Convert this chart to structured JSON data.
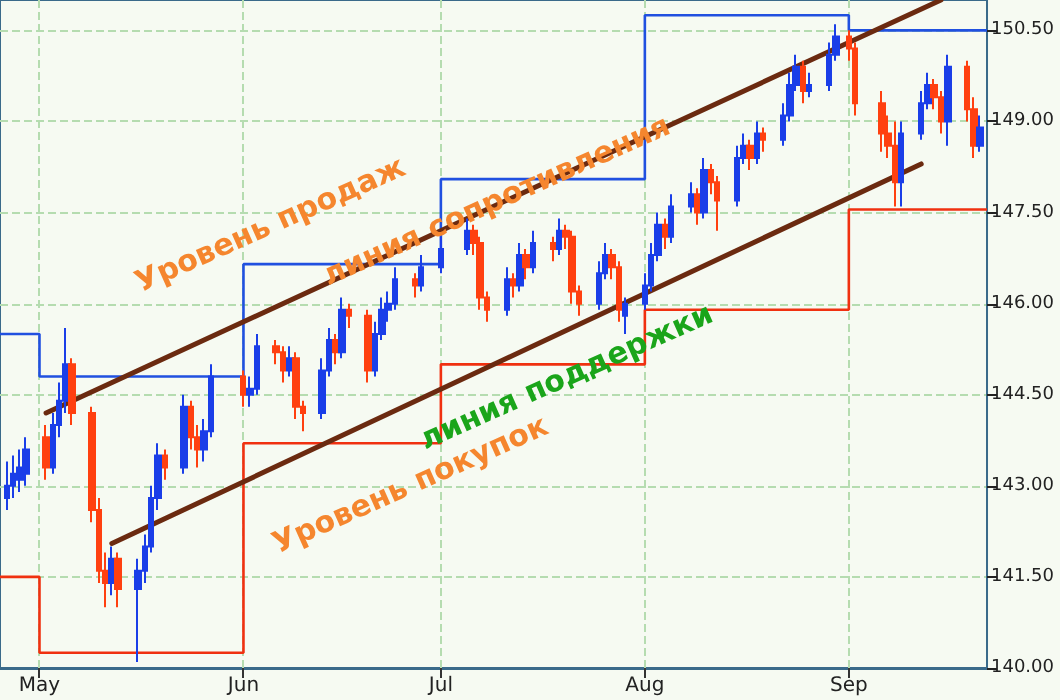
{
  "chart_data": {
    "type": "candlestick",
    "annotations": [
      "Уровень продаж",
      "линия сопротивления",
      "линия поддержки",
      "Уровень покупок"
    ],
    "xlim": [
      "--04-25",
      "--09-22"
    ],
    "xticks": [
      {
        "value": "--05-01",
        "label": "May"
      },
      {
        "value": "--06-01",
        "label": "Jun"
      },
      {
        "value": "--07-01",
        "label": "Jul"
      },
      {
        "value": "--08-01",
        "label": "Aug"
      },
      {
        "value": "--09-01",
        "label": "Sep"
      }
    ],
    "ylim": [
      140,
      151
    ],
    "yticks": [
      {
        "value": 140,
        "label": "140.00"
      },
      {
        "value": 141.5,
        "label": "141.50"
      },
      {
        "value": 143,
        "label": "143.00"
      },
      {
        "value": 144.5,
        "label": "144.50"
      },
      {
        "value": 146,
        "label": "146.00"
      },
      {
        "value": 147.5,
        "label": "147.50"
      },
      {
        "value": 149,
        "label": "149.00"
      },
      {
        "value": 150.5,
        "label": "150.50"
      }
    ],
    "grid": true,
    "marker": "none",
    "series": [
      {
        "type": "candlestick",
        "x": [
          "--04-26",
          "--04-27",
          "--04-28",
          "--04-29",
          "--05-02",
          "--05-03",
          "--05-04",
          "--05-05",
          "--05-06",
          "--05-09",
          "--05-10",
          "--05-11",
          "--05-12",
          "--05-13",
          "--05-16",
          "--05-17",
          "--05-18",
          "--05-19",
          "--05-20",
          "--05-23",
          "--05-24",
          "--05-25",
          "--05-26",
          "--05-27",
          "--06-01",
          "--06-02",
          "--06-03",
          "--06-06",
          "--06-07",
          "--06-08",
          "--06-09",
          "--06-10",
          "--06-13",
          "--06-14",
          "--06-15",
          "--06-16",
          "--06-17",
          "--06-20",
          "--06-21",
          "--06-22",
          "--06-23",
          "--06-24",
          "--06-27",
          "--06-28",
          "--07-01",
          "--07-05",
          "--07-06",
          "--07-07",
          "--07-08",
          "--07-11",
          "--07-12",
          "--07-13",
          "--07-14",
          "--07-15",
          "--07-18",
          "--07-19",
          "--07-20",
          "--07-21",
          "--07-22",
          "--07-25",
          "--07-26",
          "--07-27",
          "--07-28",
          "--07-29",
          "--08-01",
          "--08-02",
          "--08-03",
          "--08-04",
          "--08-05",
          "--08-08",
          "--08-09",
          "--08-10",
          "--08-11",
          "--08-12",
          "--08-15",
          "--08-16",
          "--08-17",
          "--08-18",
          "--08-19",
          "--08-22",
          "--08-23",
          "--08-24",
          "--08-25",
          "--08-26",
          "--08-29",
          "--08-30",
          "--09-01",
          "--09-02",
          "--09-06",
          "--09-07",
          "--09-08",
          "--09-09",
          "--09-12",
          "--09-13",
          "--09-14",
          "--09-15",
          "--09-16",
          "--09-19",
          "--09-20",
          "--09-21"
        ],
        "ohlc": [
          [
            142.8,
            143.4,
            142.6,
            143.0
          ],
          [
            143.0,
            143.5,
            142.8,
            143.2
          ],
          [
            143.1,
            143.6,
            142.9,
            143.3
          ],
          [
            143.2,
            143.8,
            143.0,
            143.6
          ],
          [
            143.8,
            144.0,
            143.1,
            143.3
          ],
          [
            143.3,
            144.2,
            143.2,
            144.0
          ],
          [
            144.0,
            144.7,
            143.8,
            144.4
          ],
          [
            144.4,
            145.6,
            144.2,
            145.0
          ],
          [
            145.0,
            145.1,
            144.0,
            144.2
          ],
          [
            144.2,
            144.3,
            142.4,
            142.6
          ],
          [
            142.6,
            142.8,
            141.4,
            141.6
          ],
          [
            141.6,
            141.9,
            141.0,
            141.4
          ],
          [
            141.4,
            142.0,
            141.2,
            141.8
          ],
          [
            141.8,
            141.9,
            141.0,
            141.3
          ],
          [
            141.3,
            141.8,
            140.1,
            141.6
          ],
          [
            141.6,
            142.2,
            141.4,
            142.0
          ],
          [
            142.0,
            143.0,
            141.9,
            142.8
          ],
          [
            142.8,
            143.7,
            142.6,
            143.5
          ],
          [
            143.5,
            143.6,
            143.1,
            143.3
          ],
          [
            143.3,
            144.5,
            143.2,
            144.3
          ],
          [
            144.3,
            144.4,
            143.6,
            143.8
          ],
          [
            143.8,
            144.0,
            143.3,
            143.6
          ],
          [
            143.6,
            144.1,
            143.4,
            143.9
          ],
          [
            143.9,
            145.0,
            143.8,
            144.8
          ],
          [
            144.8,
            144.9,
            144.3,
            144.5
          ],
          [
            144.5,
            144.8,
            144.3,
            144.6
          ],
          [
            144.6,
            145.5,
            144.5,
            145.3
          ],
          [
            145.3,
            145.4,
            145.0,
            145.2
          ],
          [
            145.2,
            145.3,
            144.7,
            144.9
          ],
          [
            144.9,
            145.3,
            144.8,
            145.1
          ],
          [
            145.1,
            145.2,
            144.1,
            144.3
          ],
          [
            144.3,
            144.4,
            143.9,
            144.2
          ],
          [
            144.2,
            145.1,
            144.1,
            144.9
          ],
          [
            144.9,
            145.6,
            144.8,
            145.4
          ],
          [
            145.4,
            145.5,
            145.0,
            145.2
          ],
          [
            145.2,
            146.1,
            145.1,
            145.9
          ],
          [
            145.9,
            146.0,
            145.6,
            145.8
          ],
          [
            145.8,
            145.9,
            144.7,
            144.9
          ],
          [
            144.9,
            145.7,
            144.8,
            145.5
          ],
          [
            145.5,
            146.1,
            145.4,
            145.9
          ],
          [
            145.9,
            146.2,
            145.7,
            146.0
          ],
          [
            146.0,
            146.6,
            145.9,
            146.4
          ],
          [
            146.4,
            146.5,
            146.1,
            146.3
          ],
          [
            146.3,
            146.8,
            146.2,
            146.6
          ],
          [
            146.6,
            147.1,
            146.5,
            146.9
          ],
          [
            146.9,
            147.4,
            146.8,
            147.2
          ],
          [
            147.2,
            147.3,
            146.8,
            147.0
          ],
          [
            147.0,
            147.1,
            145.9,
            146.1
          ],
          [
            146.1,
            146.2,
            145.7,
            145.9
          ],
          [
            145.9,
            146.6,
            145.8,
            146.4
          ],
          [
            146.4,
            146.5,
            146.1,
            146.3
          ],
          [
            146.3,
            147.0,
            146.2,
            146.8
          ],
          [
            146.8,
            146.9,
            146.4,
            146.6
          ],
          [
            146.6,
            147.2,
            146.5,
            147.0
          ],
          [
            147.0,
            147.1,
            146.7,
            146.9
          ],
          [
            146.9,
            147.4,
            146.8,
            147.2
          ],
          [
            147.2,
            147.3,
            146.9,
            147.1
          ],
          [
            147.1,
            147.2,
            146.0,
            146.2
          ],
          [
            146.2,
            146.3,
            145.8,
            146.0
          ],
          [
            146.0,
            146.7,
            145.9,
            146.5
          ],
          [
            146.5,
            147.0,
            146.4,
            146.8
          ],
          [
            146.8,
            146.9,
            146.4,
            146.6
          ],
          [
            146.6,
            146.7,
            145.7,
            145.9
          ],
          [
            145.8,
            146.1,
            145.5,
            146.0
          ],
          [
            146.0,
            146.5,
            145.9,
            146.3
          ],
          [
            146.3,
            147.0,
            146.2,
            146.8
          ],
          [
            146.8,
            147.5,
            146.7,
            147.3
          ],
          [
            147.3,
            147.4,
            146.9,
            147.1
          ],
          [
            147.1,
            147.8,
            147.0,
            147.6
          ],
          [
            147.6,
            148.0,
            147.5,
            147.8
          ],
          [
            147.8,
            147.9,
            147.3,
            147.5
          ],
          [
            147.5,
            148.4,
            147.4,
            148.2
          ],
          [
            148.2,
            148.3,
            147.8,
            148.0
          ],
          [
            148.0,
            148.1,
            147.2,
            147.7
          ],
          [
            147.7,
            148.6,
            147.6,
            148.4
          ],
          [
            148.4,
            148.8,
            148.3,
            148.6
          ],
          [
            148.6,
            148.7,
            148.2,
            148.4
          ],
          [
            148.4,
            149.0,
            148.3,
            148.8
          ],
          [
            148.8,
            148.9,
            148.5,
            148.7
          ],
          [
            148.7,
            149.3,
            148.6,
            149.1
          ],
          [
            149.1,
            149.8,
            149.0,
            149.6
          ],
          [
            149.6,
            150.1,
            149.5,
            149.9
          ],
          [
            149.9,
            150.0,
            149.3,
            149.5
          ],
          [
            149.5,
            149.8,
            149.4,
            149.6
          ],
          [
            149.6,
            150.3,
            149.5,
            150.1
          ],
          [
            150.1,
            150.6,
            150.0,
            150.4
          ],
          [
            150.4,
            150.5,
            150.0,
            150.2
          ],
          [
            150.2,
            150.3,
            149.1,
            149.3
          ],
          [
            149.3,
            149.5,
            148.5,
            148.8
          ],
          [
            148.8,
            149.1,
            148.4,
            148.6
          ],
          [
            148.6,
            149.0,
            147.6,
            148.0
          ],
          [
            148.0,
            149.0,
            147.6,
            148.8
          ],
          [
            148.8,
            149.5,
            148.7,
            149.3
          ],
          [
            149.3,
            149.8,
            149.2,
            149.6
          ],
          [
            149.6,
            149.7,
            149.2,
            149.4
          ],
          [
            149.4,
            149.5,
            148.8,
            149.0
          ],
          [
            149.0,
            150.1,
            148.6,
            149.9
          ],
          [
            149.9,
            150.0,
            149.0,
            149.2
          ],
          [
            149.2,
            149.4,
            148.4,
            148.6
          ],
          [
            148.6,
            149.1,
            148.5,
            148.9
          ]
        ],
        "colors": [
          "#1a3ee8",
          "#1a3ee8",
          "#1a3ee8",
          "#1a3ee8",
          "#ff4010",
          "#1a3ee8",
          "#1a3ee8",
          "#1a3ee8",
          "#ff4010",
          "#ff4010",
          "#ff4010",
          "#ff4010",
          "#1a3ee8",
          "#ff4010",
          "#1a3ee8",
          "#1a3ee8",
          "#1a3ee8",
          "#1a3ee8",
          "#ff4010",
          "#1a3ee8",
          "#ff4010",
          "#ff4010",
          "#1a3ee8",
          "#1a3ee8",
          "#ff4010",
          "#1a3ee8",
          "#1a3ee8",
          "#ff4010",
          "#ff4010",
          "#1a3ee8",
          "#ff4010",
          "#ff4010",
          "#1a3ee8",
          "#1a3ee8",
          "#ff4010",
          "#1a3ee8",
          "#ff4010",
          "#ff4010",
          "#1a3ee8",
          "#1a3ee8",
          "#1a3ee8",
          "#1a3ee8",
          "#ff4010",
          "#1a3ee8",
          "#1a3ee8",
          "#1a3ee8",
          "#ff4010",
          "#ff4010",
          "#ff4010",
          "#1a3ee8",
          "#ff4010",
          "#1a3ee8",
          "#ff4010",
          "#1a3ee8",
          "#ff4010",
          "#1a3ee8",
          "#ff4010",
          "#ff4010",
          "#ff4010",
          "#1a3ee8",
          "#1a3ee8",
          "#ff4010",
          "#ff4010",
          "#1a3ee8",
          "#1a3ee8",
          "#1a3ee8",
          "#1a3ee8",
          "#ff4010",
          "#1a3ee8",
          "#1a3ee8",
          "#ff4010",
          "#1a3ee8",
          "#ff4010",
          "#ff4010",
          "#1a3ee8",
          "#1a3ee8",
          "#ff4010",
          "#1a3ee8",
          "#ff4010",
          "#1a3ee8",
          "#1a3ee8",
          "#1a3ee8",
          "#ff4010",
          "#1a3ee8",
          "#1a3ee8",
          "#1a3ee8",
          "#ff4010",
          "#ff4010",
          "#ff4010",
          "#ff4010",
          "#ff4010",
          "#1a3ee8",
          "#1a3ee8",
          "#1a3ee8",
          "#ff4010",
          "#ff4010",
          "#1a3ee8",
          "#ff4010",
          "#ff4010",
          "#1a3ee8"
        ]
      },
      {
        "type": "step",
        "color": "#2050e0",
        "x": [
          "--04-25",
          "--05-01",
          "--06-01",
          "--07-01",
          "--08-01",
          "--09-01",
          "--09-22"
        ],
        "values": [
          145.5,
          144.8,
          146.65,
          148.05,
          150.75,
          150.5,
          150.5
        ]
      },
      {
        "type": "step",
        "color": "#f03010",
        "x": [
          "--04-25",
          "--05-01",
          "--06-01",
          "--07-01",
          "--08-01",
          "--09-01",
          "--09-22"
        ],
        "values": [
          141.5,
          140.25,
          143.7,
          145.0,
          145.9,
          147.55,
          147.55
        ]
      },
      {
        "type": "line",
        "color": "#6b2a10",
        "x": [
          "--05-02",
          "--09-15"
        ],
        "values": [
          144.2,
          151.0
        ]
      },
      {
        "type": "line",
        "color": "#6b2a10",
        "x": [
          "--05-12",
          "--09-12"
        ],
        "values": [
          142.05,
          148.3
        ]
      }
    ]
  }
}
